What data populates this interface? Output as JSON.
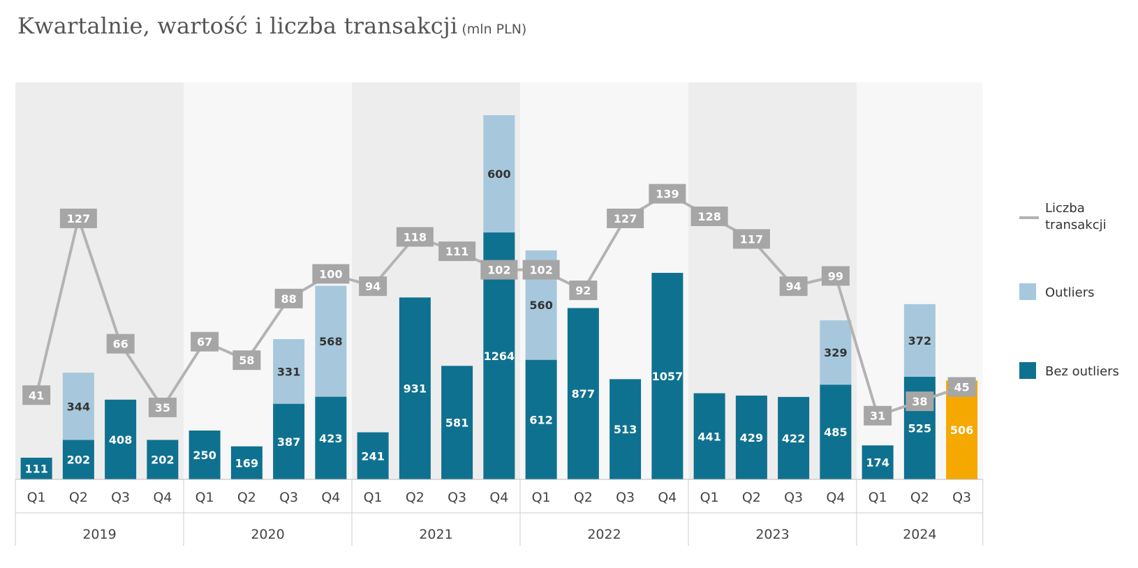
{
  "title": "Kwartalnie, wartość i liczba transakcji",
  "unit": "(mln PLN)",
  "colors": {
    "bez_outliers": "#0f7190",
    "outliers": "#a7c8dc",
    "highlight": "#f5a800",
    "line": "#b3b3b3",
    "line_label_bg": "#a6a6a6",
    "band_dark": "#ededed",
    "band_light": "#f7f7f7"
  },
  "chart_data": {
    "type": "bar",
    "stacked": true,
    "years": [
      "2019",
      "2020",
      "2021",
      "2022",
      "2023",
      "2024"
    ],
    "quarters": [
      "Q1",
      "Q2",
      "Q3",
      "Q4",
      "Q1",
      "Q2",
      "Q3",
      "Q4",
      "Q1",
      "Q2",
      "Q3",
      "Q4",
      "Q1",
      "Q2",
      "Q3",
      "Q4",
      "Q1",
      "Q2",
      "Q3",
      "Q4",
      "Q1",
      "Q2",
      "Q3"
    ],
    "series": [
      {
        "name": "Bez outliers",
        "values": [
          111,
          202,
          408,
          202,
          250,
          169,
          387,
          423,
          241,
          931,
          581,
          1264,
          612,
          877,
          513,
          1057,
          441,
          429,
          422,
          485,
          174,
          525,
          506
        ]
      },
      {
        "name": "Outliers",
        "values": [
          0,
          344,
          0,
          0,
          0,
          0,
          331,
          568,
          0,
          0,
          0,
          600,
          560,
          0,
          0,
          0,
          0,
          0,
          0,
          329,
          0,
          372,
          0
        ]
      },
      {
        "name": "Liczba transakcji",
        "type": "line",
        "values": [
          41,
          127,
          66,
          35,
          67,
          58,
          88,
          100,
          94,
          118,
          111,
          102,
          102,
          92,
          127,
          139,
          128,
          117,
          94,
          99,
          31,
          38,
          45
        ]
      }
    ],
    "highlight_index": 22,
    "legend": [
      "Liczba transakcji",
      "Outliers",
      "Bez outliers"
    ],
    "legend_position": "right"
  }
}
